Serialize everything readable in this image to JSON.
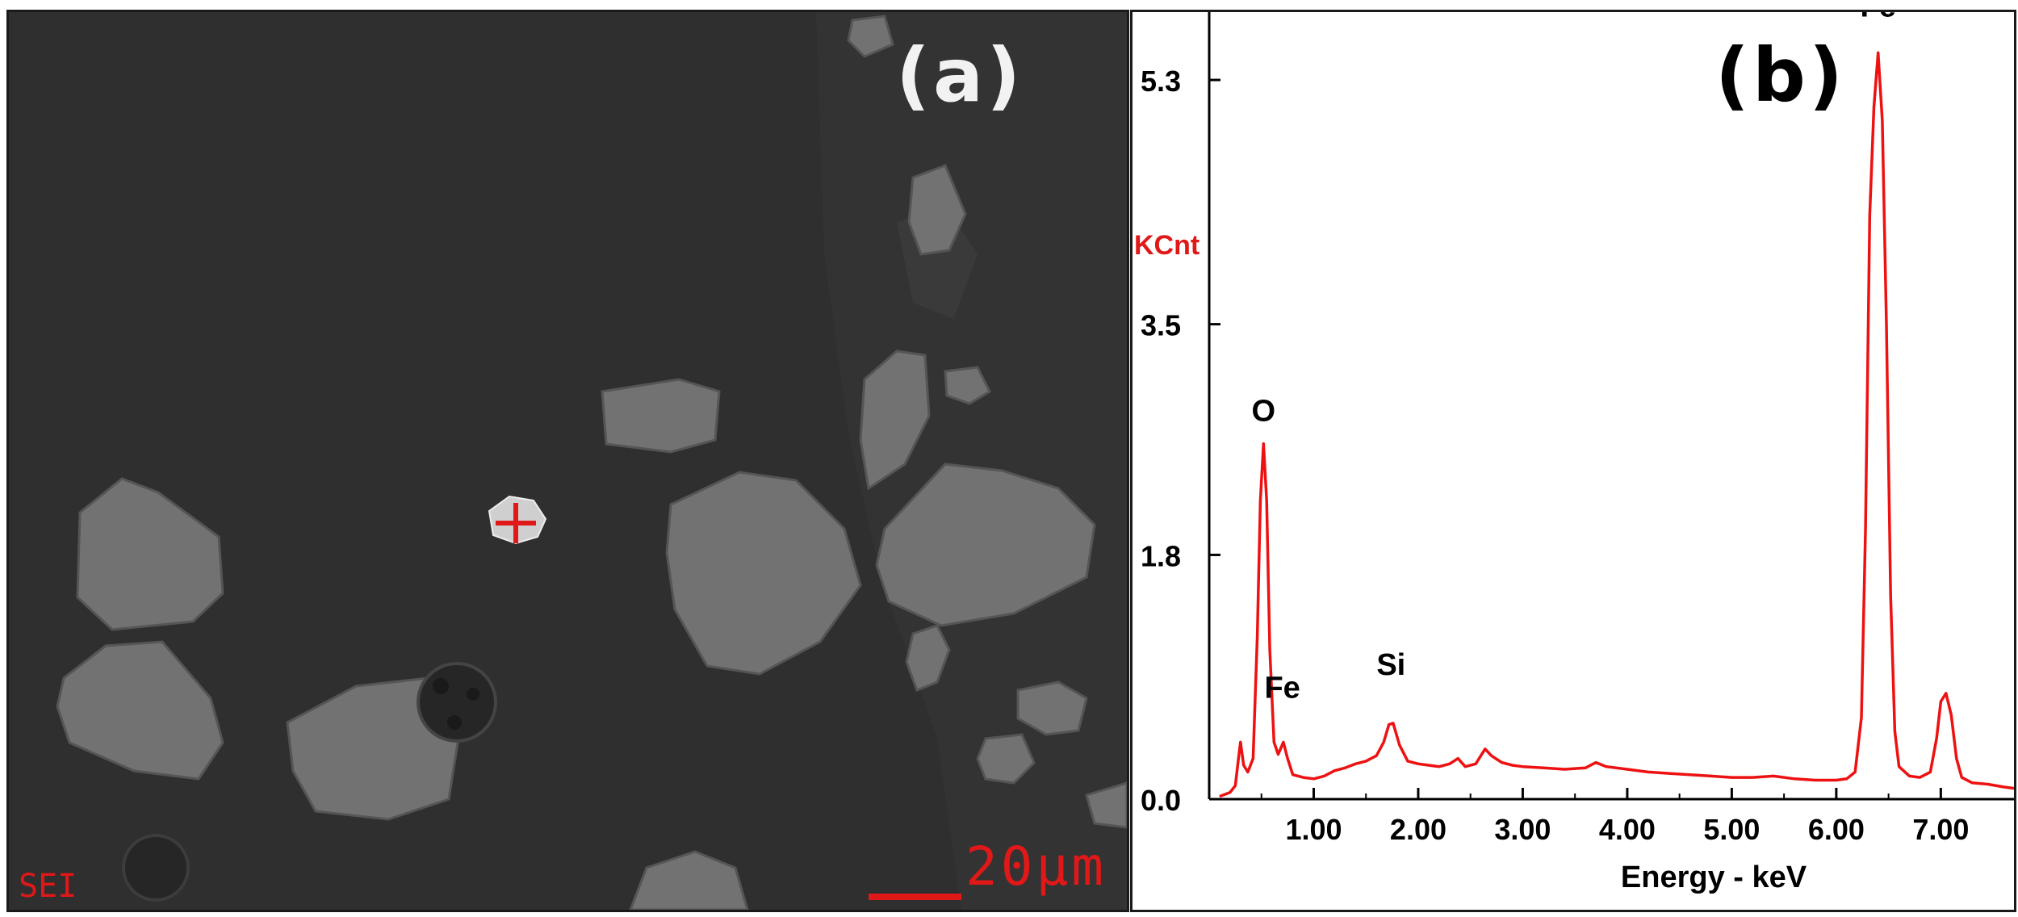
{
  "panel_a": {
    "label": "(a)",
    "detector": "SEI",
    "scale_bar": "20μm",
    "colors": {
      "background": "#2e2e2e",
      "particle": "#777777",
      "bright_particle": "#cfcfcf",
      "marker": "#e01818"
    }
  },
  "panel_b": {
    "label": "(b)"
  },
  "chart_data": {
    "type": "line",
    "title": "",
    "xlabel": "Energy - keV",
    "ylabel": "KCnt",
    "xlim": [
      0.0,
      7.7
    ],
    "ylim": [
      0.0,
      5.8
    ],
    "x_ticks": [
      1.0,
      2.0,
      3.0,
      4.0,
      5.0,
      6.0,
      7.0
    ],
    "x_tick_labels": [
      "1.00",
      "2.00",
      "3.00",
      "4.00",
      "5.00",
      "6.00",
      "7.00"
    ],
    "y_ticks": [
      0.0,
      1.8,
      3.5,
      5.3
    ],
    "y_tick_labels": [
      "0.0",
      "1.8",
      "3.5",
      "5.3"
    ],
    "grid": false,
    "line_color": "#ee1111",
    "peak_labels": [
      {
        "text": "O",
        "x": 0.52,
        "y": 2.62
      },
      {
        "text": "Fe",
        "x": 0.7,
        "y": 0.58
      },
      {
        "text": "Si",
        "x": 1.74,
        "y": 0.75
      },
      {
        "text": "Fe",
        "x": 6.4,
        "y": 5.6
      }
    ],
    "series": [
      {
        "points": [
          [
            0.1,
            0.02
          ],
          [
            0.2,
            0.05
          ],
          [
            0.25,
            0.1
          ],
          [
            0.28,
            0.3
          ],
          [
            0.3,
            0.42
          ],
          [
            0.33,
            0.25
          ],
          [
            0.37,
            0.2
          ],
          [
            0.42,
            0.3
          ],
          [
            0.46,
            1.2
          ],
          [
            0.49,
            2.2
          ],
          [
            0.52,
            2.62
          ],
          [
            0.55,
            2.2
          ],
          [
            0.58,
            1.1
          ],
          [
            0.62,
            0.42
          ],
          [
            0.66,
            0.33
          ],
          [
            0.71,
            0.42
          ],
          [
            0.75,
            0.3
          ],
          [
            0.8,
            0.18
          ],
          [
            0.9,
            0.16
          ],
          [
            1.0,
            0.15
          ],
          [
            1.1,
            0.17
          ],
          [
            1.2,
            0.21
          ],
          [
            1.3,
            0.23
          ],
          [
            1.4,
            0.26
          ],
          [
            1.5,
            0.28
          ],
          [
            1.6,
            0.32
          ],
          [
            1.67,
            0.42
          ],
          [
            1.72,
            0.55
          ],
          [
            1.76,
            0.56
          ],
          [
            1.82,
            0.4
          ],
          [
            1.9,
            0.28
          ],
          [
            2.0,
            0.26
          ],
          [
            2.1,
            0.25
          ],
          [
            2.2,
            0.24
          ],
          [
            2.3,
            0.26
          ],
          [
            2.38,
            0.3
          ],
          [
            2.45,
            0.24
          ],
          [
            2.55,
            0.26
          ],
          [
            2.64,
            0.37
          ],
          [
            2.7,
            0.32
          ],
          [
            2.8,
            0.27
          ],
          [
            2.9,
            0.25
          ],
          [
            3.0,
            0.24
          ],
          [
            3.2,
            0.23
          ],
          [
            3.4,
            0.22
          ],
          [
            3.6,
            0.23
          ],
          [
            3.7,
            0.27
          ],
          [
            3.8,
            0.24
          ],
          [
            4.0,
            0.22
          ],
          [
            4.2,
            0.2
          ],
          [
            4.4,
            0.19
          ],
          [
            4.6,
            0.18
          ],
          [
            4.8,
            0.17
          ],
          [
            5.0,
            0.16
          ],
          [
            5.2,
            0.16
          ],
          [
            5.4,
            0.17
          ],
          [
            5.6,
            0.15
          ],
          [
            5.8,
            0.14
          ],
          [
            6.0,
            0.14
          ],
          [
            6.1,
            0.15
          ],
          [
            6.18,
            0.2
          ],
          [
            6.24,
            0.6
          ],
          [
            6.28,
            2.0
          ],
          [
            6.32,
            4.3
          ],
          [
            6.36,
            5.1
          ],
          [
            6.4,
            5.5
          ],
          [
            6.44,
            5.0
          ],
          [
            6.48,
            3.5
          ],
          [
            6.52,
            1.5
          ],
          [
            6.56,
            0.5
          ],
          [
            6.6,
            0.24
          ],
          [
            6.7,
            0.17
          ],
          [
            6.8,
            0.16
          ],
          [
            6.9,
            0.2
          ],
          [
            6.96,
            0.45
          ],
          [
            7.0,
            0.72
          ],
          [
            7.05,
            0.78
          ],
          [
            7.1,
            0.62
          ],
          [
            7.15,
            0.3
          ],
          [
            7.2,
            0.16
          ],
          [
            7.3,
            0.12
          ],
          [
            7.45,
            0.11
          ],
          [
            7.6,
            0.09
          ],
          [
            7.7,
            0.08
          ]
        ]
      }
    ]
  }
}
